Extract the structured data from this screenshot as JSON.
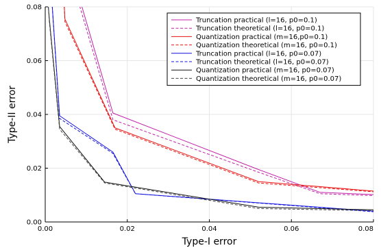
{
  "chart_data": {
    "type": "line",
    "title": "",
    "xlabel": "Type-I error",
    "ylabel": "Type-II error",
    "xlim": [
      0,
      0.08
    ],
    "ylim": [
      0,
      0.08
    ],
    "xticks": [
      0.0,
      0.02,
      0.04,
      0.06,
      0.08
    ],
    "yticks": [
      0.0,
      0.02,
      0.04,
      0.06,
      0.08
    ],
    "xtick_labels": [
      "0.00",
      "0.02",
      "0.04",
      "0.06",
      "0.08"
    ],
    "ytick_labels": [
      "0.00",
      "0.02",
      "0.04",
      "0.06",
      "0.08"
    ],
    "grid": true,
    "legend_position": "top-right",
    "series": [
      {
        "name": "Truncation practical (l=16, p0=0.1)",
        "color": "#c020a8",
        "dash": "solid",
        "x": [
          0.008,
          0.0165,
          0.052,
          0.067,
          0.08
        ],
        "y": [
          0.085,
          0.0405,
          0.0195,
          0.011,
          0.0102
        ]
      },
      {
        "name": "Truncation theoretical (l=16, p0=0.1)",
        "color": "#c020a8",
        "dash": "dashed",
        "x": [
          0.0075,
          0.0165,
          0.052,
          0.067,
          0.08
        ],
        "y": [
          0.085,
          0.038,
          0.0185,
          0.0105,
          0.0098
        ]
      },
      {
        "name": "Quantization practical (m=16,p0=0.1)",
        "color": "#e81010",
        "dash": "solid",
        "x": [
          0.0045,
          0.0048,
          0.017,
          0.052,
          0.08
        ],
        "y": [
          0.085,
          0.0755,
          0.035,
          0.015,
          0.0115
        ]
      },
      {
        "name": "Quantization theoretical (m=16, p0=0.1)",
        "color": "#e81010",
        "dash": "dashed",
        "x": [
          0.0045,
          0.0048,
          0.017,
          0.052,
          0.08
        ],
        "y": [
          0.085,
          0.0745,
          0.0345,
          0.0145,
          0.0112
        ]
      },
      {
        "name": "Truncation practical (l=16, p0=0.07)",
        "color": "#1010e0",
        "dash": "solid",
        "x": [
          0.0015,
          0.0035,
          0.0165,
          0.022,
          0.08
        ],
        "y": [
          0.085,
          0.0395,
          0.026,
          0.0105,
          0.004
        ]
      },
      {
        "name": "Truncation theoretical (l=16, p0=0.07)",
        "color": "#1010e0",
        "dash": "dashed",
        "x": [
          0.0015,
          0.0035,
          0.0165,
          0.022,
          0.08
        ],
        "y": [
          0.085,
          0.0385,
          0.0255,
          0.0105,
          0.0038
        ]
      },
      {
        "name": "Quantization practical (m=16, p0=0.07)",
        "color": "#111111",
        "dash": "solid",
        "x": [
          0.0005,
          0.001,
          0.0035,
          0.0145,
          0.052,
          0.08
        ],
        "y": [
          0.085,
          0.0755,
          0.0355,
          0.0148,
          0.0055,
          0.0045
        ]
      },
      {
        "name": "Quantization theoretical (m=16, p0=0.07)",
        "color": "#444444",
        "dash": "dashed",
        "x": [
          0.0005,
          0.001,
          0.0035,
          0.0145,
          0.052,
          0.08
        ],
        "y": [
          0.085,
          0.0745,
          0.0345,
          0.0145,
          0.005,
          0.0042
        ]
      }
    ]
  }
}
